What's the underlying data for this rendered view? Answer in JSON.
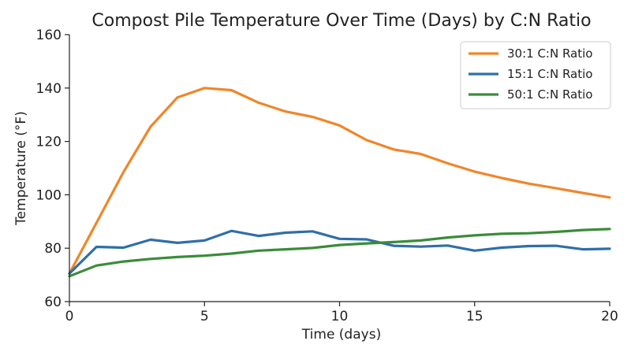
{
  "chart_data": {
    "type": "line",
    "title": "Compost Pile Temperature Over Time (Days) by C:N Ratio",
    "xlabel": "Time (days)",
    "ylabel": "Temperature (°F)",
    "xlim": [
      0,
      20
    ],
    "ylim": [
      60,
      160
    ],
    "xticks": [
      0,
      5,
      10,
      15,
      20
    ],
    "yticks": [
      60,
      80,
      100,
      120,
      140,
      160
    ],
    "grid": false,
    "legend": "top-right",
    "x": [
      0,
      1,
      2,
      3,
      4,
      5,
      6,
      7,
      8,
      9,
      10,
      11,
      12,
      13,
      14,
      15,
      16,
      17,
      18,
      19,
      20
    ],
    "series": [
      {
        "name": "30:1 C:N Ratio",
        "color": "#f0862a",
        "values": [
          70.5,
          89.5,
          108.5,
          125.5,
          136.5,
          140.0,
          139.2,
          134.5,
          131.2,
          129.2,
          126.0,
          120.5,
          117.0,
          115.3,
          111.8,
          108.7,
          106.3,
          104.2,
          102.5,
          100.7,
          99.0
        ]
      },
      {
        "name": "15:1 C:N Ratio",
        "color": "#2f6fa8",
        "values": [
          70.5,
          80.5,
          80.2,
          83.2,
          82.0,
          82.9,
          86.5,
          84.6,
          85.8,
          86.3,
          83.5,
          83.3,
          80.9,
          80.6,
          81.0,
          79.1,
          80.2,
          80.8,
          80.9,
          79.6,
          79.8
        ]
      },
      {
        "name": "50:1 C:N Ratio",
        "color": "#3a8c3a",
        "values": [
          69.5,
          73.5,
          75.0,
          76.0,
          76.7,
          77.2,
          78.0,
          79.1,
          79.6,
          80.1,
          81.2,
          81.8,
          82.3,
          82.9,
          84.0,
          84.8,
          85.4,
          85.6,
          86.1,
          86.8,
          87.2
        ]
      }
    ]
  }
}
